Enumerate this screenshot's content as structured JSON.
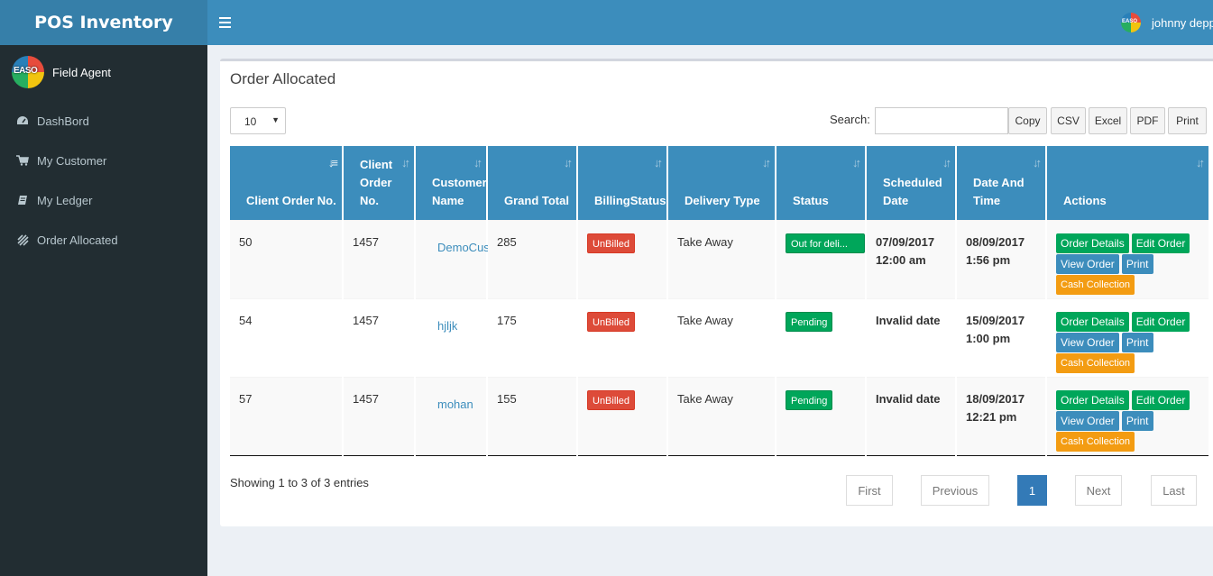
{
  "app": {
    "title": "POS Inventory",
    "user_name": "johnny depp"
  },
  "sidebar": {
    "profile_name": "Field Agent",
    "avatar_text": "EASO",
    "items": [
      {
        "label": "DashBord",
        "icon": "dashboard-icon"
      },
      {
        "label": "My Customer",
        "icon": "cart-icon"
      },
      {
        "label": "My Ledger",
        "icon": "book-icon"
      },
      {
        "label": "Order Allocated",
        "icon": "order-icon"
      }
    ]
  },
  "main": {
    "title": "Order Allocated",
    "page_length": "10",
    "search_label": "Search:",
    "search_value": "",
    "export_buttons": [
      "Copy",
      "CSV",
      "Excel",
      "PDF",
      "Print"
    ],
    "columns": [
      "Client Order No.",
      "Client Order No.",
      "Customer Name",
      "Grand Total",
      "BillingStatus",
      "Delivery Type",
      "Status",
      "Scheduled Date",
      "Date And Time",
      "Actions"
    ],
    "rows": [
      {
        "client_order_no": "50",
        "client_order_no2": "1457",
        "customer": "DemoCus",
        "total": "285",
        "billing": "UnBilled",
        "delivery": "Take Away",
        "status": "Out for deli...",
        "scheduled": "07/09/2017 12:00 am",
        "datetime": "08/09/2017 1:56 pm"
      },
      {
        "client_order_no": "54",
        "client_order_no2": "1457",
        "customer": "hjljk",
        "total": "175",
        "billing": "UnBilled",
        "delivery": "Take Away",
        "status": "Pending",
        "scheduled": "Invalid date",
        "datetime": "15/09/2017 1:00 pm"
      },
      {
        "client_order_no": "57",
        "client_order_no2": "1457",
        "customer": "mohan",
        "total": "155",
        "billing": "UnBilled",
        "delivery": "Take Away",
        "status": "Pending",
        "scheduled": "Invalid date",
        "datetime": "18/09/2017 12:21 pm"
      }
    ],
    "actions": [
      "Order Details",
      "Edit Order",
      "View Order",
      "Print",
      "Cash Collection"
    ],
    "info_text": "Showing 1 to 3 of 3 entries",
    "pagination": [
      "First",
      "Previous",
      "1",
      "Next",
      "Last"
    ]
  },
  "colors": {
    "header": "#3c8dbc",
    "logo_bg": "#367fa9",
    "sidebar_bg": "#222d32",
    "success": "#00a65a",
    "danger": "#dd4b39",
    "warning": "#f39c12"
  }
}
